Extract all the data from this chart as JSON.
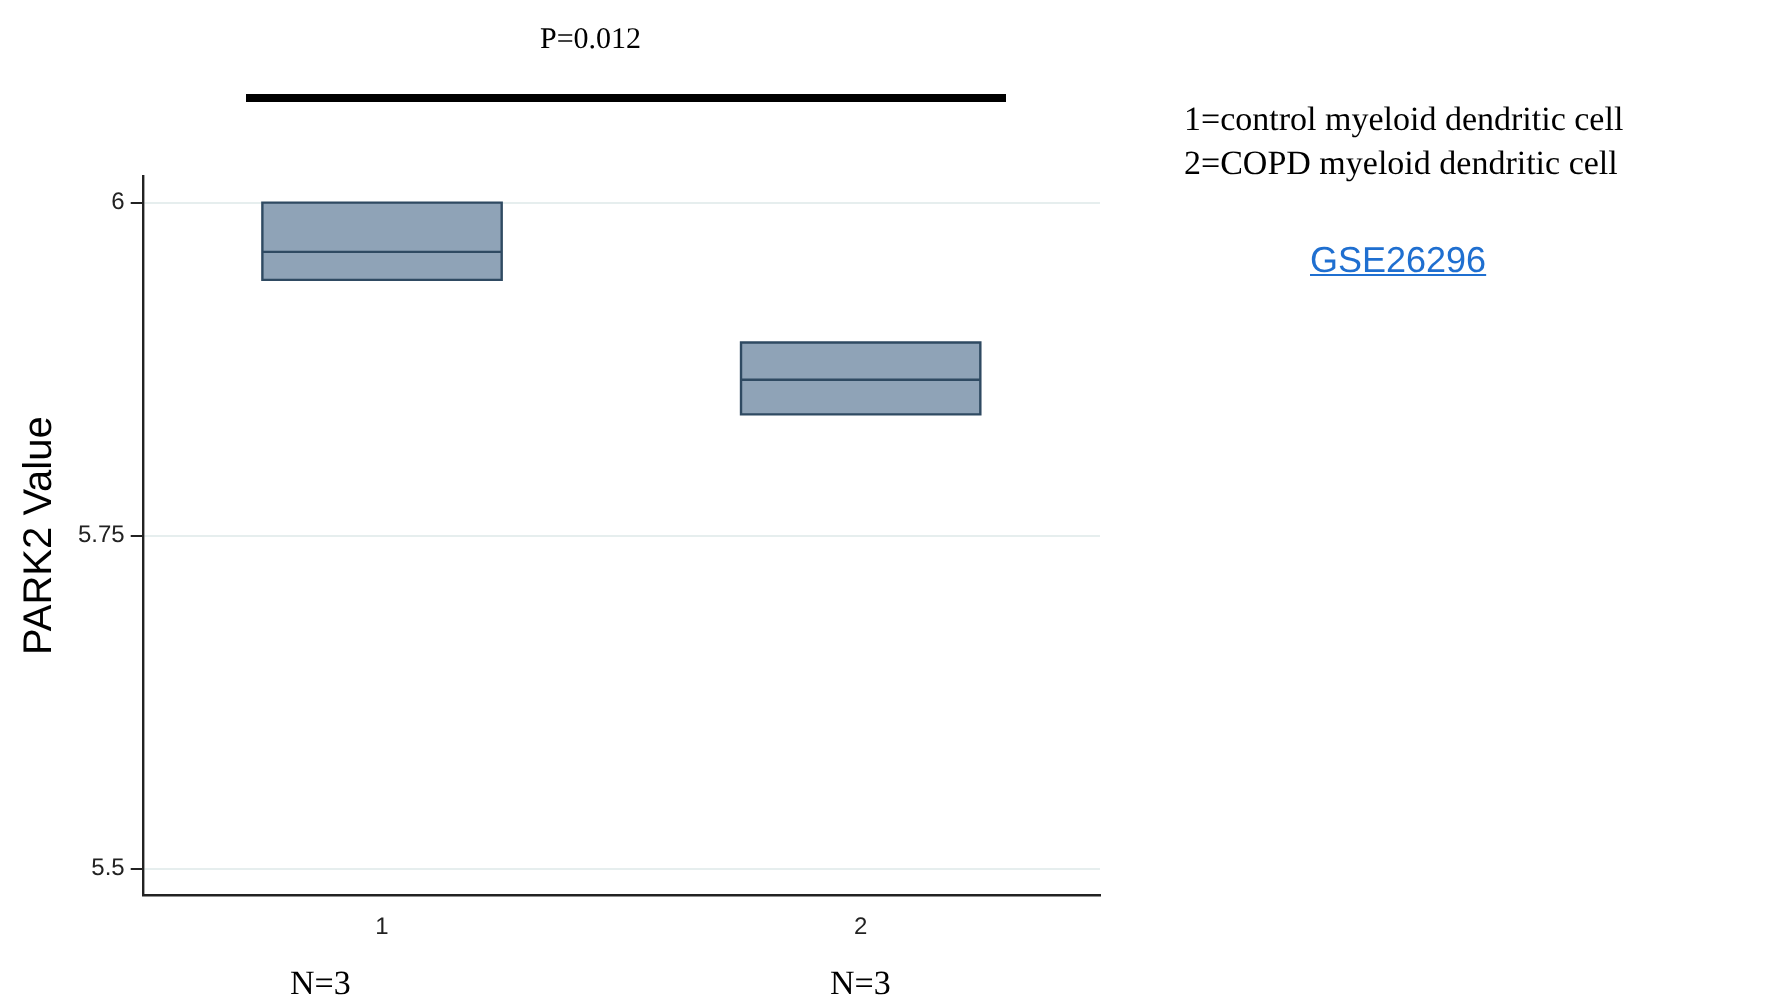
{
  "chart_data": {
    "type": "box",
    "ylabel": "PARK2 Value",
    "categories": [
      "1",
      "2"
    ],
    "color": "#8fa3b7",
    "boxes": [
      {
        "low": 5.942,
        "q1": 5.942,
        "median": 5.963,
        "q3": 6.0,
        "high": 6.0
      },
      {
        "low": 5.841,
        "q1": 5.841,
        "median": 5.867,
        "q3": 5.895,
        "high": 5.895
      }
    ],
    "ylim": [
      5.48,
      6.02
    ],
    "yticks": [
      5.5,
      5.75,
      6
    ],
    "grid": "y",
    "legend": false,
    "annotations": [
      "P=0.012",
      "N=3",
      "N=3",
      "1=control myeloid dendritic cell",
      "2=COPD myeloid dendritic cell",
      "GSE26296"
    ]
  }
}
